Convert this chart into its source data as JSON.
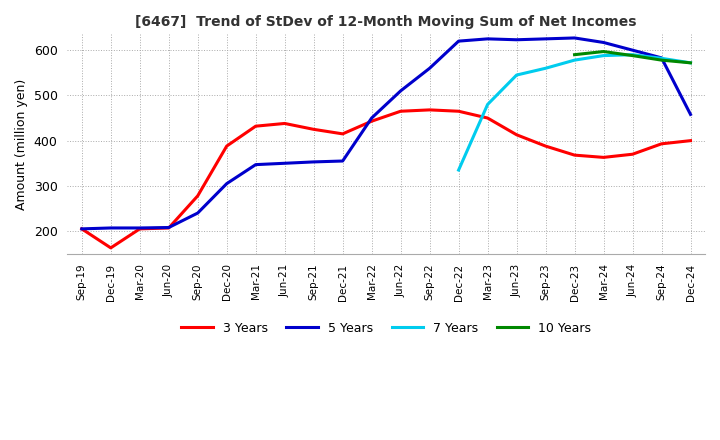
{
  "title": "[6467]  Trend of StDev of 12-Month Moving Sum of Net Incomes",
  "ylabel": "Amount (million yen)",
  "ylim": [
    150,
    635
  ],
  "yticks": [
    200,
    300,
    400,
    500,
    600
  ],
  "background_color": "#ffffff",
  "grid_color": "#aaaaaa",
  "legend_entries": [
    "3 Years",
    "5 Years",
    "7 Years",
    "10 Years"
  ],
  "line_colors": [
    "#ff0000",
    "#0000cc",
    "#00ccee",
    "#008800"
  ],
  "x_labels": [
    "Sep-19",
    "Dec-19",
    "Mar-20",
    "Jun-20",
    "Sep-20",
    "Dec-20",
    "Mar-21",
    "Jun-21",
    "Sep-21",
    "Dec-21",
    "Mar-22",
    "Jun-22",
    "Sep-22",
    "Dec-22",
    "Mar-23",
    "Jun-23",
    "Sep-23",
    "Dec-23",
    "Mar-24",
    "Jun-24",
    "Sep-24",
    "Dec-24"
  ],
  "series_3yr": [
    205,
    163,
    205,
    207,
    278,
    388,
    432,
    438,
    425,
    415,
    443,
    465,
    468,
    465,
    450,
    413,
    388,
    368,
    363,
    370,
    393,
    400
  ],
  "series_5yr": [
    205,
    207,
    207,
    208,
    240,
    305,
    347,
    350,
    353,
    355,
    450,
    510,
    560,
    620,
    625,
    623,
    625,
    627,
    617,
    600,
    583,
    458
  ],
  "series_7yr": [
    null,
    null,
    null,
    null,
    null,
    null,
    null,
    null,
    null,
    null,
    null,
    null,
    null,
    335,
    480,
    545,
    560,
    578,
    588,
    590,
    582,
    572
  ],
  "series_10yr": [
    null,
    null,
    null,
    null,
    null,
    null,
    null,
    null,
    null,
    null,
    null,
    null,
    null,
    null,
    null,
    null,
    null,
    590,
    597,
    588,
    578,
    572
  ]
}
